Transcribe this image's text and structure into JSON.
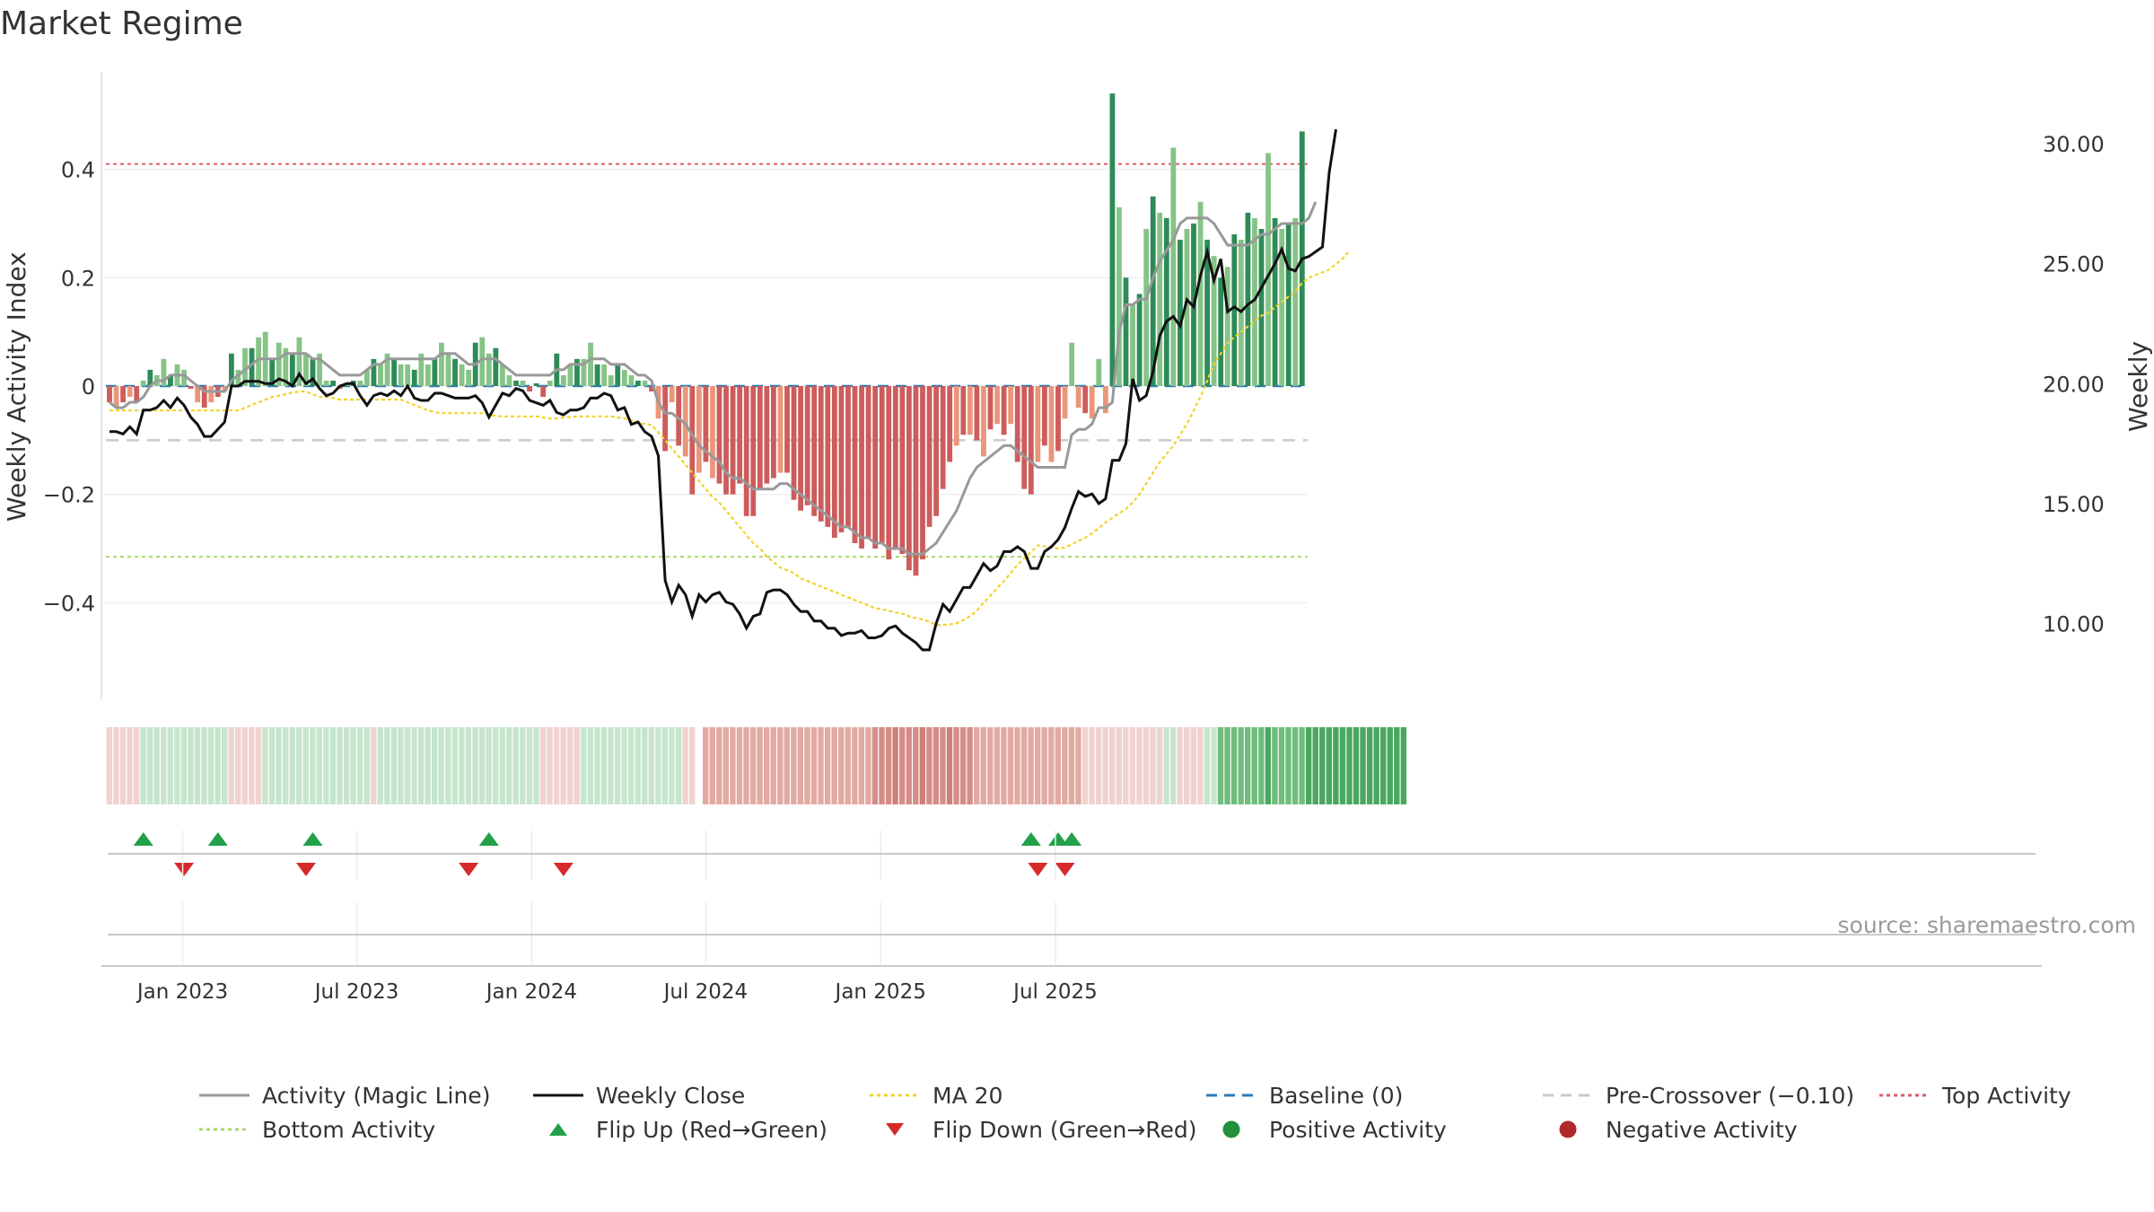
{
  "title": "Market Regime",
  "source": "source: sharemaestro.com",
  "colors": {
    "pos_dark": "#2e8b57",
    "pos_light": "#86c386",
    "neg_dark": "#cd5c5c",
    "neg_light": "#e9967a",
    "magic": "#999999",
    "close": "#111111",
    "ma20": "#f2d32a",
    "baseline": "#2b7bb9",
    "pre": "#c9c9c9",
    "top": "#e05a6a",
    "bottom": "#a8d86a",
    "flip_up": "#22a04a",
    "flip_down": "#d62a2a"
  },
  "chart_data": {
    "type": "bar",
    "title": "Market Regime",
    "ylabel": "Weekly Activity Index",
    "y2label": "Weekly Close Price",
    "ylim": [
      -0.58,
      0.58
    ],
    "y2lim": [
      6.8,
      33.0
    ],
    "y_ticks": [
      -0.4,
      -0.2,
      0,
      0.2,
      0.4
    ],
    "y_tick_labels": [
      "−0.4",
      "−0.2",
      "0",
      "0.2",
      "0.4"
    ],
    "y2_ticks": [
      10,
      15,
      20,
      25,
      30
    ],
    "y2_tick_labels": [
      "10.00",
      "15.00",
      "20.00",
      "25.00",
      "30.00"
    ],
    "x_ticks": [
      10.8,
      36.5,
      62.3,
      88.0,
      113.8,
      139.6
    ],
    "x_tick_labels": [
      "Jan 2023",
      "Jul 2023",
      "Jan 2024",
      "Jul 2024",
      "Jan 2025",
      "Jul 2025"
    ],
    "levels": {
      "baseline": 0,
      "pre_crossover": -0.1,
      "top": 0.41,
      "bottom": -0.315
    },
    "activity": [
      -0.03,
      -0.04,
      -0.03,
      -0.02,
      -0.03,
      0.01,
      0.03,
      0.02,
      0.05,
      0.02,
      0.04,
      0.03,
      -0.005,
      -0.03,
      -0.04,
      -0.03,
      -0.02,
      -0.01,
      0.06,
      0.03,
      0.07,
      0.07,
      0.09,
      0.1,
      0.05,
      0.08,
      0.07,
      0.06,
      0.09,
      0.06,
      0.05,
      0.06,
      0.01,
      0.01,
      -0.005,
      0.005,
      0.01,
      0.01,
      0.03,
      0.05,
      0.04,
      0.06,
      0.05,
      0.04,
      0.04,
      0.03,
      0.06,
      0.04,
      0.05,
      0.08,
      0.06,
      0.05,
      0.04,
      0.03,
      0.08,
      0.09,
      0.06,
      0.07,
      0.04,
      0.02,
      0.01,
      0.01,
      -0.01,
      0.005,
      -0.02,
      0.01,
      0.06,
      0.02,
      0.04,
      0.05,
      0.05,
      0.08,
      0.04,
      0.04,
      0.02,
      0.04,
      0.03,
      0.02,
      0.01,
      0.01,
      -0.01,
      -0.06,
      -0.12,
      -0.03,
      -0.11,
      -0.13,
      -0.2,
      -0.16,
      -0.14,
      -0.17,
      -0.18,
      -0.2,
      -0.2,
      -0.18,
      -0.24,
      -0.24,
      -0.19,
      -0.18,
      -0.17,
      -0.16,
      -0.16,
      -0.21,
      -0.23,
      -0.22,
      -0.24,
      -0.25,
      -0.26,
      -0.28,
      -0.27,
      -0.26,
      -0.29,
      -0.3,
      -0.28,
      -0.3,
      -0.29,
      -0.32,
      -0.3,
      -0.31,
      -0.34,
      -0.35,
      -0.32,
      -0.26,
      -0.24,
      -0.19,
      -0.14,
      -0.11,
      -0.09,
      -0.09,
      -0.1,
      -0.13,
      -0.08,
      -0.07,
      -0.09,
      -0.07,
      -0.14,
      -0.19,
      -0.2,
      -0.14,
      -0.11,
      -0.14,
      -0.12,
      -0.06,
      0.08,
      -0.04,
      -0.05,
      -0.06,
      0.05,
      -0.05,
      0.54,
      0.33,
      0.2,
      0.15,
      0.17,
      0.29,
      0.35,
      0.32,
      0.31,
      0.44,
      0.27,
      0.29,
      0.3,
      0.34,
      0.27,
      0.24,
      0.2,
      0.22,
      0.28,
      0.27,
      0.32,
      0.31,
      0.29,
      0.43,
      0.31,
      0.29,
      0.3,
      0.31,
      0.47
    ],
    "close": [
      18.0,
      18.0,
      17.9,
      18.2,
      17.9,
      18.9,
      18.9,
      19.0,
      19.3,
      19.0,
      19.4,
      19.1,
      18.6,
      18.3,
      17.8,
      17.8,
      18.1,
      18.4,
      19.9,
      19.9,
      20.1,
      20.1,
      20.1,
      20.0,
      20.0,
      20.2,
      20.1,
      19.9,
      20.4,
      20.0,
      20.2,
      19.8,
      19.5,
      19.6,
      19.9,
      20.0,
      20.0,
      19.5,
      19.1,
      19.5,
      19.6,
      19.5,
      19.7,
      19.5,
      19.9,
      19.4,
      19.3,
      19.3,
      19.6,
      19.6,
      19.5,
      19.4,
      19.4,
      19.4,
      19.5,
      19.2,
      18.6,
      19.1,
      19.6,
      19.5,
      19.8,
      19.7,
      19.3,
      19.2,
      19.1,
      19.3,
      18.8,
      18.7,
      18.9,
      18.9,
      19.0,
      19.4,
      19.4,
      19.6,
      19.5,
      18.9,
      19.0,
      18.3,
      18.4,
      18.0,
      17.8,
      17.0,
      11.8,
      10.9,
      11.6,
      11.2,
      10.3,
      11.2,
      10.9,
      11.2,
      11.3,
      10.9,
      10.8,
      10.4,
      9.8,
      10.3,
      10.4,
      11.3,
      11.4,
      11.4,
      11.2,
      10.8,
      10.5,
      10.5,
      10.1,
      10.1,
      9.8,
      9.8,
      9.5,
      9.6,
      9.6,
      9.7,
      9.4,
      9.4,
      9.5,
      9.8,
      9.9,
      9.6,
      9.4,
      9.2,
      8.9,
      8.9,
      10.0,
      10.8,
      10.5,
      11.0,
      11.5,
      11.5,
      12.0,
      12.5,
      12.2,
      12.4,
      13.0,
      13.0,
      13.2,
      13.0,
      12.3,
      12.3,
      13.0,
      13.2,
      13.5,
      14.0,
      14.8,
      15.5,
      15.3,
      15.4,
      15.0,
      15.2,
      16.8,
      16.8,
      17.5,
      20.2,
      19.3,
      19.5,
      20.5,
      22.0,
      22.6,
      22.8,
      22.4,
      23.5,
      23.2,
      24.5,
      25.5,
      24.3,
      25.2,
      23.0,
      23.2,
      23.0,
      23.3,
      23.5,
      24.0,
      24.5,
      25.0,
      25.6,
      24.8,
      24.7,
      25.2,
      25.3,
      25.5,
      25.7,
      28.8,
      30.6
    ],
    "magic": [
      -0.03,
      -0.04,
      -0.04,
      -0.03,
      -0.03,
      -0.02,
      0.0,
      0.01,
      0.01,
      0.02,
      0.02,
      0.02,
      0.01,
      0.0,
      -0.01,
      -0.01,
      -0.01,
      -0.01,
      0.01,
      0.02,
      0.03,
      0.04,
      0.05,
      0.05,
      0.05,
      0.05,
      0.06,
      0.06,
      0.06,
      0.06,
      0.05,
      0.05,
      0.04,
      0.03,
      0.02,
      0.02,
      0.02,
      0.02,
      0.03,
      0.04,
      0.04,
      0.05,
      0.05,
      0.05,
      0.05,
      0.05,
      0.05,
      0.05,
      0.05,
      0.06,
      0.06,
      0.06,
      0.05,
      0.04,
      0.04,
      0.05,
      0.05,
      0.05,
      0.04,
      0.03,
      0.02,
      0.02,
      0.02,
      0.02,
      0.02,
      0.02,
      0.03,
      0.03,
      0.04,
      0.04,
      0.04,
      0.05,
      0.05,
      0.05,
      0.04,
      0.04,
      0.04,
      0.03,
      0.02,
      0.02,
      0.01,
      -0.03,
      -0.05,
      -0.05,
      -0.06,
      -0.07,
      -0.09,
      -0.11,
      -0.12,
      -0.13,
      -0.14,
      -0.16,
      -0.17,
      -0.17,
      -0.18,
      -0.19,
      -0.19,
      -0.19,
      -0.19,
      -0.18,
      -0.18,
      -0.19,
      -0.2,
      -0.21,
      -0.22,
      -0.23,
      -0.24,
      -0.25,
      -0.26,
      -0.26,
      -0.27,
      -0.28,
      -0.28,
      -0.29,
      -0.29,
      -0.3,
      -0.3,
      -0.3,
      -0.31,
      -0.31,
      -0.31,
      -0.3,
      -0.29,
      -0.27,
      -0.25,
      -0.23,
      -0.2,
      -0.17,
      -0.15,
      -0.14,
      -0.13,
      -0.12,
      -0.11,
      -0.11,
      -0.12,
      -0.13,
      -0.14,
      -0.15,
      -0.15,
      -0.15,
      -0.15,
      -0.15,
      -0.09,
      -0.08,
      -0.08,
      -0.07,
      -0.04,
      -0.04,
      -0.03,
      0.1,
      0.15,
      0.15,
      0.16,
      0.16,
      0.2,
      0.23,
      0.25,
      0.27,
      0.3,
      0.31,
      0.31,
      0.31,
      0.31,
      0.3,
      0.28,
      0.26,
      0.26,
      0.26,
      0.26,
      0.27,
      0.28,
      0.28,
      0.29,
      0.3,
      0.3,
      0.3,
      0.3,
      0.31,
      0.34
    ],
    "ma20": [
      -0.045,
      -0.045,
      -0.045,
      -0.045,
      -0.045,
      -0.045,
      -0.045,
      -0.045,
      -0.045,
      -0.045,
      -0.045,
      -0.045,
      -0.045,
      -0.045,
      -0.045,
      -0.045,
      -0.045,
      -0.045,
      -0.045,
      -0.045,
      -0.04,
      -0.035,
      -0.03,
      -0.025,
      -0.02,
      -0.018,
      -0.015,
      -0.012,
      -0.01,
      -0.01,
      -0.015,
      -0.02,
      -0.02,
      -0.022,
      -0.025,
      -0.025,
      -0.025,
      -0.025,
      -0.025,
      -0.025,
      -0.025,
      -0.025,
      -0.025,
      -0.025,
      -0.03,
      -0.035,
      -0.04,
      -0.045,
      -0.048,
      -0.05,
      -0.05,
      -0.05,
      -0.05,
      -0.05,
      -0.05,
      -0.05,
      -0.053,
      -0.055,
      -0.056,
      -0.056,
      -0.056,
      -0.056,
      -0.056,
      -0.056,
      -0.058,
      -0.06,
      -0.06,
      -0.058,
      -0.057,
      -0.056,
      -0.056,
      -0.056,
      -0.056,
      -0.056,
      -0.056,
      -0.058,
      -0.06,
      -0.063,
      -0.067,
      -0.07,
      -0.072,
      -0.085,
      -0.1,
      -0.115,
      -0.13,
      -0.145,
      -0.16,
      -0.175,
      -0.19,
      -0.205,
      -0.215,
      -0.23,
      -0.245,
      -0.26,
      -0.275,
      -0.29,
      -0.3,
      -0.315,
      -0.325,
      -0.335,
      -0.34,
      -0.345,
      -0.355,
      -0.36,
      -0.365,
      -0.37,
      -0.375,
      -0.38,
      -0.385,
      -0.39,
      -0.395,
      -0.4,
      -0.405,
      -0.41,
      -0.412,
      -0.415,
      -0.418,
      -0.42,
      -0.425,
      -0.428,
      -0.431,
      -0.435,
      -0.441,
      -0.441,
      -0.44,
      -0.438,
      -0.432,
      -0.425,
      -0.415,
      -0.4,
      -0.387,
      -0.373,
      -0.36,
      -0.345,
      -0.33,
      -0.318,
      -0.306,
      -0.294,
      -0.296,
      -0.298,
      -0.3,
      -0.298,
      -0.292,
      -0.286,
      -0.28,
      -0.272,
      -0.262,
      -0.252,
      -0.243,
      -0.235,
      -0.227,
      -0.215,
      -0.2,
      -0.18,
      -0.16,
      -0.14,
      -0.125,
      -0.11,
      -0.09,
      -0.07,
      -0.045,
      -0.02,
      0.01,
      0.04,
      0.06,
      0.08,
      0.09,
      0.1,
      0.11,
      0.12,
      0.13,
      0.135,
      0.145,
      0.155,
      0.165,
      0.175,
      0.19,
      0.2,
      0.205,
      0.21,
      0.215,
      0.225,
      0.235,
      0.25
    ],
    "strip": [
      -1,
      -1,
      -1,
      -1,
      -1,
      1,
      1,
      1,
      1,
      1,
      1,
      1,
      1,
      1,
      1,
      1,
      1,
      1,
      -1,
      -1,
      -1,
      -1,
      -1,
      1,
      1,
      1,
      1,
      1,
      1,
      1,
      1,
      1,
      1,
      1,
      1,
      1,
      1,
      1,
      1,
      -1,
      1,
      1,
      1,
      1,
      1,
      1,
      1,
      1,
      1,
      1,
      1,
      1,
      1,
      1,
      1,
      1,
      1,
      1,
      1,
      1,
      1,
      1,
      1,
      1,
      -1,
      -1,
      -1,
      -1,
      -1,
      -1,
      1,
      1,
      1,
      1,
      1,
      1,
      1,
      1,
      1,
      1,
      1,
      1,
      1,
      1,
      1,
      -1,
      -1,
      null,
      -2,
      -2,
      -2,
      -2,
      -2,
      -2,
      -2,
      -2,
      -2,
      -2,
      -2,
      -2,
      -2,
      -2,
      -2,
      -2,
      -2,
      -2,
      -2,
      -2,
      -2,
      -2,
      -2,
      -2,
      -2,
      -3,
      -3,
      -3,
      -3,
      -3,
      -3,
      -3,
      -3,
      -3,
      -3,
      -3,
      -3,
      -3,
      -3,
      -3,
      -2,
      -2,
      -2,
      -2,
      -2,
      -2,
      -2,
      -2,
      -2,
      -2,
      -2,
      -2,
      -2,
      -2,
      -2,
      -2,
      -1,
      -1,
      -1,
      -1,
      -1,
      -1,
      -1,
      -1,
      -1,
      -1,
      -1,
      -1,
      1,
      1,
      -1,
      -1,
      -1,
      -1,
      1,
      1,
      3,
      3,
      3,
      3,
      3,
      3,
      3,
      3,
      3,
      3,
      3,
      3,
      3,
      3,
      3,
      3,
      3,
      3,
      3,
      3,
      3,
      3,
      3,
      3,
      3,
      3,
      3,
      3
    ],
    "flips_up": [
      5,
      16,
      30,
      56,
      136,
      140,
      142
    ],
    "flips_down": [
      11,
      29,
      53,
      67,
      137,
      141
    ],
    "legend": [
      {
        "label": "Activity (Magic Line)",
        "kind": "line",
        "color": "#999999",
        "dash": ""
      },
      {
        "label": "Weekly Close",
        "kind": "line",
        "color": "#111111",
        "dash": ""
      },
      {
        "label": "MA 20",
        "kind": "line",
        "color": "#f2d32a",
        "dash": "4 4"
      },
      {
        "label": "Baseline (0)",
        "kind": "line",
        "color": "#2b7bb9",
        "dash": "12 8"
      },
      {
        "label": "Pre-Crossover (−0.10)",
        "kind": "line",
        "color": "#c9c9c9",
        "dash": "12 8"
      },
      {
        "label": "Top Activity",
        "kind": "line",
        "color": "#e05a6a",
        "dash": "4 4"
      },
      {
        "label": "Bottom Activity",
        "kind": "line",
        "color": "#a8d86a",
        "dash": "4 4"
      },
      {
        "label": "Flip Up (Red→Green)",
        "kind": "up",
        "color": "#22a04a"
      },
      {
        "label": "Flip Down (Green→Red)",
        "kind": "down",
        "color": "#d62a2a"
      },
      {
        "label": "Positive Activity",
        "kind": "dot",
        "color": "#22913a"
      },
      {
        "label": "Negative Activity",
        "kind": "dot",
        "color": "#b0282a"
      }
    ]
  }
}
